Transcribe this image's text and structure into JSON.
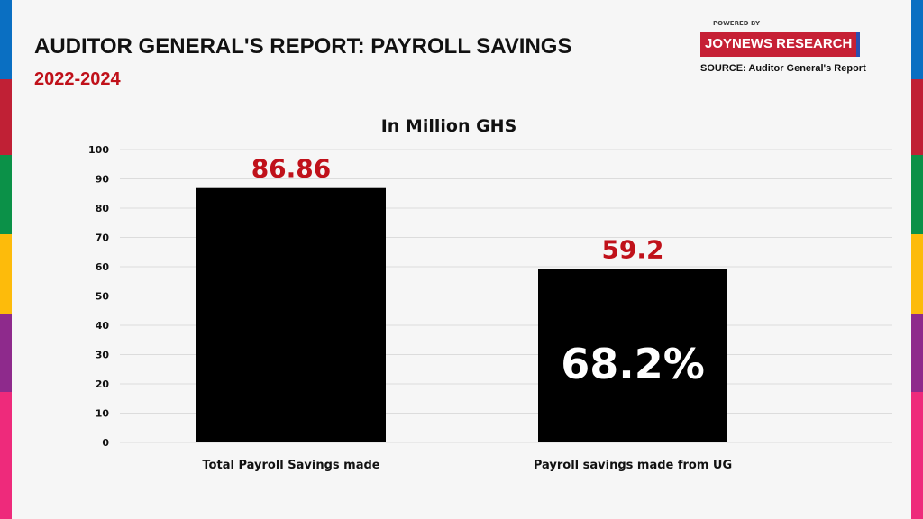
{
  "header": {
    "title": "AUDITOR GENERAL'S REPORT: PAYROLL SAVINGS",
    "subtitle": "2022-2024"
  },
  "branding": {
    "powered_by": "POWERED BY",
    "logo_text": "JOYNEWS RESEARCH",
    "source": "SOURCE: Auditor General's Report"
  },
  "stripe_colors": [
    "#0a6fc2",
    "#c02035",
    "#0b9148",
    "#fdbb0b",
    "#8e2a8c",
    "#ee2a7b"
  ],
  "chart_data": {
    "type": "bar",
    "title": "In Million GHS",
    "categories": [
      "Total Payroll Savings made",
      "Payroll savings made from UG"
    ],
    "values": [
      86.86,
      59.2
    ],
    "data_labels": [
      "86.86",
      "59.2"
    ],
    "annotations": [
      {
        "category": "Payroll savings made from UG",
        "text": "68.2%"
      }
    ],
    "ylim": [
      0,
      100
    ],
    "yticks": [
      0,
      10,
      20,
      30,
      40,
      50,
      60,
      70,
      80,
      90,
      100
    ],
    "grid": true,
    "bar_color": "#000000",
    "label_color": "#c0111a"
  }
}
